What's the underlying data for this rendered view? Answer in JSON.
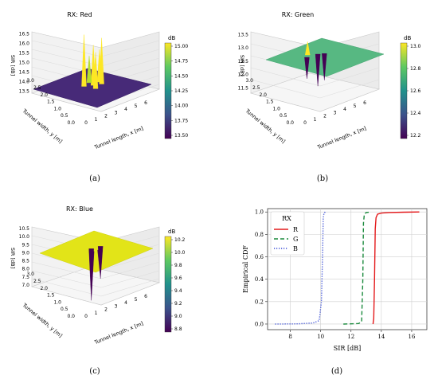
{
  "chart_data": [
    {
      "type": "surface",
      "panel_label": "(a)",
      "title": "RX: Red",
      "xlabel": "Tunnel length, x [m]",
      "ylabel": "Tunnel width, y [m]",
      "zlabel": "SIR [dB]",
      "x_ticks": [
        "0",
        "1",
        "2",
        "3",
        "4",
        "5",
        "6"
      ],
      "y_ticks": [
        "0.0",
        "0.5",
        "1.0",
        "1.5",
        "2.0",
        "2.5",
        "3.0"
      ],
      "z_ticks": [
        "13.5",
        "14.0",
        "14.5",
        "15.0",
        "15.5",
        "16.0",
        "16.5"
      ],
      "zlim": [
        13.4,
        16.6
      ],
      "colorbar": {
        "unit": "dB",
        "ticks": [
          "13.50",
          "13.75",
          "14.00",
          "14.25",
          "14.50",
          "14.75",
          "15.00"
        ],
        "colormap": "viridis"
      },
      "plateau_value": 13.5,
      "peaks": [
        {
          "x": 2.6,
          "y": 1.2,
          "z": 16.2
        },
        {
          "x": 3.0,
          "y": 1.5,
          "z": 15.6
        },
        {
          "x": 3.3,
          "y": 1.8,
          "z": 15.9
        },
        {
          "x": 2.9,
          "y": 1.9,
          "z": 15.2
        },
        {
          "x": 3.6,
          "y": 1.3,
          "z": 15.4
        },
        {
          "x": 2.4,
          "y": 1.6,
          "z": 14.9
        }
      ]
    },
    {
      "type": "surface",
      "panel_label": "(b)",
      "title": "RX: Green",
      "xlabel": "Tunnel length, x [m]",
      "ylabel": "Tunnel width, y [m]",
      "zlabel": "SIR [dB]",
      "x_ticks": [
        "0",
        "1",
        "2",
        "3",
        "4",
        "5",
        "6"
      ],
      "y_ticks": [
        "0.0",
        "0.5",
        "1.0",
        "1.5",
        "2.0",
        "2.5",
        "3.0"
      ],
      "z_ticks": [
        "11.5",
        "12.0",
        "12.5",
        "13.0",
        "13.5"
      ],
      "zlim": [
        11.3,
        13.6
      ],
      "colorbar": {
        "unit": "dB",
        "ticks": [
          "12.2",
          "12.4",
          "12.6",
          "12.8",
          "13.0"
        ],
        "colormap": "viridis"
      },
      "plateau_value": 12.8,
      "peaks": [
        {
          "x": 2.7,
          "y": 1.4,
          "z": 13.3
        },
        {
          "x": 3.2,
          "y": 1.7,
          "z": 11.6
        },
        {
          "x": 3.0,
          "y": 1.2,
          "z": 12.0
        },
        {
          "x": 3.5,
          "y": 1.9,
          "z": 11.8
        }
      ]
    },
    {
      "type": "surface",
      "panel_label": "(c)",
      "title": "RX: Blue",
      "xlabel": "Tunnel length, x [m]",
      "ylabel": "Tunnel width, y [m]",
      "zlabel": "SIR [dB]",
      "x_ticks": [
        "0",
        "1",
        "2",
        "3",
        "4",
        "5",
        "6"
      ],
      "y_ticks": [
        "0.0",
        "0.5",
        "1.0",
        "1.5",
        "2.0",
        "2.5",
        "3.0"
      ],
      "z_ticks": [
        "7.0",
        "7.5",
        "8.0",
        "8.5",
        "9.0",
        "9.5",
        "10.0",
        "10.5"
      ],
      "zlim": [
        6.9,
        10.6
      ],
      "colorbar": {
        "unit": "dB",
        "ticks": [
          "8.8",
          "9.0",
          "9.2",
          "9.4",
          "9.6",
          "9.8",
          "10.0",
          "10.2"
        ],
        "colormap": "viridis"
      },
      "plateau_value": 10.2,
      "peaks": [
        {
          "x": 2.8,
          "y": 1.5,
          "z": 7.0
        },
        {
          "x": 3.2,
          "y": 1.3,
          "z": 7.6
        },
        {
          "x": 3.0,
          "y": 1.9,
          "z": 8.2
        },
        {
          "x": 3.5,
          "y": 1.6,
          "z": 8.8
        }
      ]
    },
    {
      "type": "line",
      "panel_label": "(d)",
      "title": "",
      "xlabel": "SIR [dB]",
      "ylabel": "Empirical CDF",
      "xlim": [
        6.5,
        17
      ],
      "ylim": [
        -0.05,
        1.03
      ],
      "x_ticks": [
        8,
        10,
        12,
        14,
        16
      ],
      "y_ticks": [
        "0.0",
        "0.2",
        "0.4",
        "0.6",
        "0.8",
        "1.0"
      ],
      "grid": true,
      "legend": {
        "title": "RX",
        "placement": "top-left"
      },
      "series": [
        {
          "name": "R",
          "color": "#e41a1c",
          "dash": "solid",
          "x": [
            13.45,
            13.5,
            13.55,
            13.6,
            13.65,
            13.75,
            14.0,
            14.5,
            15.5,
            16.5
          ],
          "y": [
            0.0,
            0.05,
            0.4,
            0.85,
            0.95,
            0.98,
            0.99,
            0.995,
            0.998,
            1.0
          ]
        },
        {
          "name": "G",
          "color": "#1a8a3c",
          "dash": "dashed",
          "x": [
            11.5,
            12.0,
            12.5,
            12.7,
            12.78,
            12.82,
            12.88,
            13.0,
            13.3
          ],
          "y": [
            0.0,
            0.002,
            0.005,
            0.02,
            0.4,
            0.9,
            0.98,
            0.995,
            1.0
          ]
        },
        {
          "name": "B",
          "color": "#3b4fd6",
          "dash": "dotted",
          "x": [
            7.0,
            8.5,
            9.5,
            9.9,
            10.05,
            10.12,
            10.17,
            10.22,
            10.3
          ],
          "y": [
            0.0,
            0.002,
            0.01,
            0.03,
            0.2,
            0.6,
            0.95,
            0.99,
            1.0
          ]
        }
      ]
    }
  ]
}
